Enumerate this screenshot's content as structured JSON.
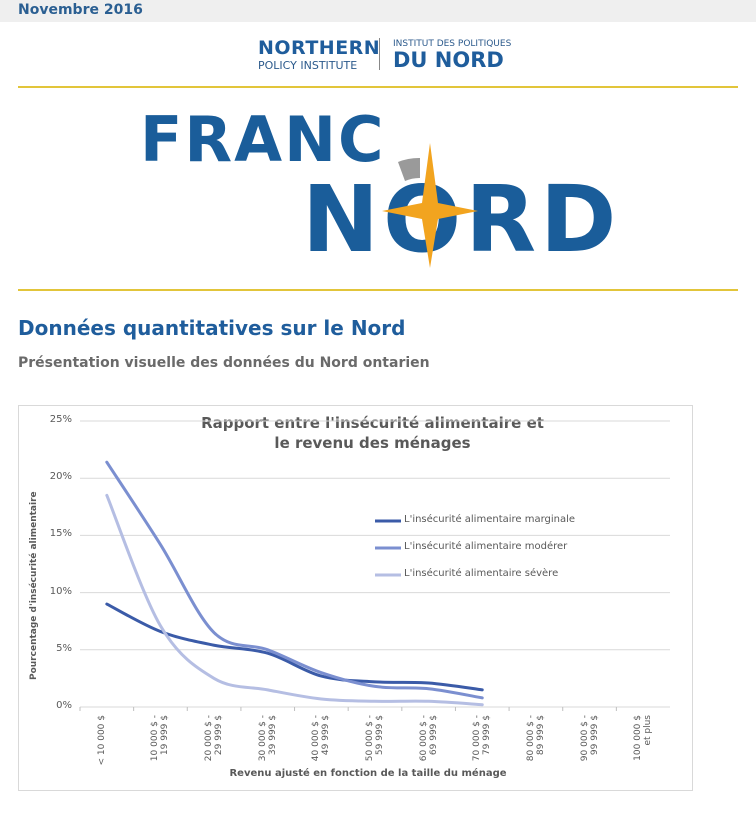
{
  "header": {
    "date": "Novembre 2016"
  },
  "logo": {
    "line1": "NORTHERN",
    "line2": "POLICY INSTITUTE",
    "line3": "INSTITUT DES POLITIQUES",
    "line4": "DU NORD"
  },
  "banner": {
    "word1": "FRANC",
    "word2": "NORD"
  },
  "article": {
    "heading": "Données quantitatives sur le Nord",
    "subheading": "Présentation visuelle des données du Nord ontarien"
  },
  "chart_data": {
    "type": "line",
    "title": "Rapport entre l'insécurité alimentaire et\nle revenu des ménages",
    "y_label": "Pourcentage d'insécurité alimentaire",
    "x_label": "Revenu ajusté en fonction de la taille du ménage",
    "categories": [
      "< 10 000 $",
      "10 000 $ -\n19 999 $",
      "20 000 $ -\n29 999 $",
      "30 000 $ -\n39 999 $",
      "40 000 $ -\n49 999 $",
      "50 000 $ -\n59 999 $",
      "60 000 $ -\n69 999 $",
      "70 000 $ -\n79 999 $",
      "80 000 $ -\n89 999 $",
      "90 000 $ -\n99 999 $",
      "100 000 $\net plus"
    ],
    "series": [
      {
        "name": "L'insécurité alimentaire marginale",
        "color": "#3b5ba8",
        "values": [
          9.0,
          6.6,
          5.4,
          4.7,
          2.7,
          2.2,
          2.1,
          1.5,
          null,
          null,
          null
        ]
      },
      {
        "name": "L'insécurité alimentaire modérer",
        "color": "#7b8fd0",
        "values": [
          21.4,
          14.2,
          6.5,
          5.0,
          3.0,
          1.8,
          1.6,
          0.8,
          null,
          null,
          null
        ]
      },
      {
        "name": "L'insécurité alimentaire sévère",
        "color": "#b5bee3",
        "values": [
          18.5,
          7.1,
          2.5,
          1.5,
          0.7,
          0.5,
          0.5,
          0.2,
          null,
          null,
          null
        ]
      }
    ],
    "ylim": [
      0,
      25
    ],
    "yticks": [
      {
        "value": 0,
        "label": "0%"
      },
      {
        "value": 5,
        "label": "5%"
      },
      {
        "value": 10,
        "label": "10%"
      },
      {
        "value": 15,
        "label": "15%"
      },
      {
        "value": 20,
        "label": "20%"
      },
      {
        "value": 25,
        "label": "25%"
      }
    ],
    "grid": true,
    "legend": "right"
  }
}
